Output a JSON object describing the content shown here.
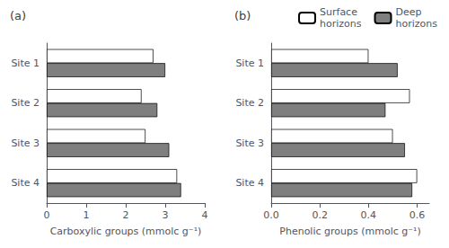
{
  "chart_data": [
    {
      "type": "bar",
      "orientation": "horizontal",
      "title": "(a)",
      "categories": [
        "Site 1",
        "Site 2",
        "Site 3",
        "Site 4"
      ],
      "series": [
        {
          "name": "Surface\nhorizons",
          "color": "#ffffff",
          "values": [
            2.7,
            2.4,
            2.5,
            3.3
          ]
        },
        {
          "name": "Deep\nhorizons",
          "color": "#7f7f7f",
          "values": [
            3.0,
            2.8,
            3.1,
            3.4
          ]
        }
      ],
      "xlabel": "Carboxylic groups (mmolc g⁻¹)",
      "xlim": [
        0,
        4.0
      ],
      "xticks": [
        0,
        1,
        2,
        3,
        4
      ],
      "grid": false,
      "legend": "upper right"
    },
    {
      "type": "bar",
      "orientation": "horizontal",
      "title": "(b)",
      "categories": [
        "Site 1",
        "Site 2",
        "Site 3",
        "Site 4"
      ],
      "series": [
        {
          "name": "Surface\nhorizons",
          "color": "#ffffff",
          "values": [
            0.4,
            0.57,
            0.5,
            0.6
          ]
        },
        {
          "name": "Deep\nhorizons",
          "color": "#7f7f7f",
          "values": [
            0.52,
            0.47,
            0.55,
            0.58
          ]
        }
      ],
      "xlabel": "Phenolic groups (mmolc g⁻¹)",
      "xlim": [
        0,
        0.65
      ],
      "xticks": [
        {
          "value": 0,
          "label": "0.0"
        },
        0.2,
        0.4,
        0.6
      ],
      "grid": false
    }
  ]
}
